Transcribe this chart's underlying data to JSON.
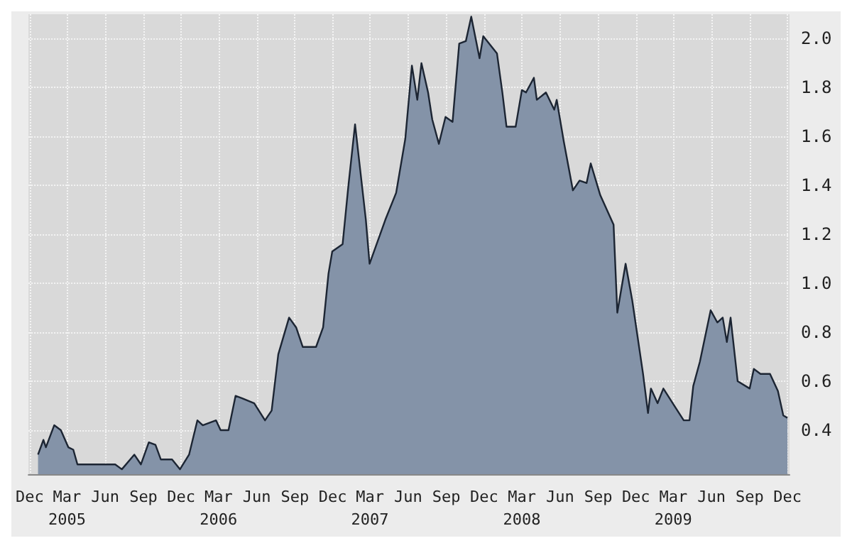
{
  "chart_data": {
    "type": "area",
    "x": [
      "2004-12-21",
      "2005-01-03",
      "2005-01-09",
      "2005-01-29",
      "2005-02-14",
      "2005-03-04",
      "2005-03-16",
      "2005-03-26",
      "2005-06-25",
      "2005-07-11",
      "2005-08-10",
      "2005-08-26",
      "2005-09-14",
      "2005-09-30",
      "2005-10-13",
      "2005-11-09",
      "2005-11-28",
      "2005-12-20",
      "2006-01-09",
      "2006-01-22",
      "2006-02-07",
      "2006-02-23",
      "2006-03-06",
      "2006-03-25",
      "2006-04-11",
      "2006-04-27",
      "2006-05-26",
      "2006-06-21",
      "2006-07-07",
      "2006-07-23",
      "2006-08-18",
      "2006-09-04",
      "2006-09-20",
      "2006-10-22",
      "2006-11-08",
      "2006-11-21",
      "2006-11-30",
      "2006-12-25",
      "2007-01-08",
      "2007-01-24",
      "2007-02-19",
      "2007-02-28",
      "2007-04-07",
      "2007-05-03",
      "2007-05-25",
      "2007-06-10",
      "2007-06-23",
      "2007-07-03",
      "2007-07-19",
      "2007-07-29",
      "2007-08-14",
      "2007-08-30",
      "2007-09-16",
      "2007-10-02",
      "2007-10-18",
      "2007-10-31",
      "2007-11-20",
      "2007-11-29",
      "2008-01-01",
      "2008-01-14",
      "2008-01-24",
      "2008-02-15",
      "2008-03-01",
      "2008-03-11",
      "2008-03-30",
      "2008-04-06",
      "2008-04-28",
      "2008-05-18",
      "2008-05-24",
      "2008-06-10",
      "2008-07-02",
      "2008-07-18",
      "2008-08-04",
      "2008-08-14",
      "2008-09-06",
      "2008-10-08",
      "2008-10-17",
      "2008-11-06",
      "2008-11-22",
      "2008-12-18",
      "2008-12-30",
      "2009-01-06",
      "2009-01-22",
      "2009-02-05",
      "2009-03-07",
      "2009-03-26",
      "2009-04-09",
      "2009-04-18",
      "2009-05-04",
      "2009-05-30",
      "2009-06-15",
      "2009-06-28",
      "2009-07-08",
      "2009-07-17",
      "2009-08-03",
      "2009-09-01",
      "2009-09-11",
      "2009-09-27",
      "2009-10-20",
      "2009-11-08",
      "2009-11-21",
      "2009-12-01"
    ],
    "series": [
      {
        "color": "#8493a8",
        "values": [
          0.3,
          0.36,
          0.33,
          0.42,
          0.4,
          0.33,
          0.32,
          0.26,
          0.26,
          0.24,
          0.3,
          0.26,
          0.35,
          0.34,
          0.28,
          0.28,
          0.24,
          0.3,
          0.44,
          0.42,
          0.43,
          0.44,
          0.4,
          0.4,
          0.54,
          0.53,
          0.51,
          0.44,
          0.48,
          0.71,
          0.86,
          0.82,
          0.74,
          0.74,
          0.82,
          1.04,
          1.13,
          1.16,
          1.4,
          1.65,
          1.26,
          1.08,
          1.26,
          1.37,
          1.59,
          1.89,
          1.75,
          1.9,
          1.78,
          1.67,
          1.57,
          1.68,
          1.66,
          1.98,
          1.99,
          2.09,
          1.92,
          2.01,
          1.94,
          1.78,
          1.64,
          1.64,
          1.79,
          1.78,
          1.84,
          1.75,
          1.78,
          1.71,
          1.75,
          1.58,
          1.38,
          1.42,
          1.41,
          1.49,
          1.36,
          1.24,
          0.88,
          1.08,
          0.93,
          0.63,
          0.47,
          0.57,
          0.51,
          0.57,
          0.49,
          0.44,
          0.44,
          0.58,
          0.68,
          0.89,
          0.84,
          0.86,
          0.76,
          0.86,
          0.6,
          0.57,
          0.65,
          0.63,
          0.63,
          0.56,
          0.46,
          0.45
        ]
      }
    ],
    "xlim": [
      "2004-11-28",
      "2009-12-06"
    ],
    "xticks": [
      {
        "value": "2004-12-01",
        "label": "Dec"
      },
      {
        "value": "2005-03-01",
        "label": "Mar\n2005"
      },
      {
        "value": "2005-06-01",
        "label": "Jun"
      },
      {
        "value": "2005-09-01",
        "label": "Sep"
      },
      {
        "value": "2005-12-01",
        "label": "Dec"
      },
      {
        "value": "2006-03-01",
        "label": "Mar\n2006"
      },
      {
        "value": "2006-06-01",
        "label": "Jun"
      },
      {
        "value": "2006-09-01",
        "label": "Sep"
      },
      {
        "value": "2006-12-01",
        "label": "Dec"
      },
      {
        "value": "2007-03-01",
        "label": "Mar\n2007"
      },
      {
        "value": "2007-06-01",
        "label": "Jun"
      },
      {
        "value": "2007-09-01",
        "label": "Sep"
      },
      {
        "value": "2007-12-01",
        "label": "Dec"
      },
      {
        "value": "2008-03-01",
        "label": "Mar\n2008"
      },
      {
        "value": "2008-06-01",
        "label": "Jun"
      },
      {
        "value": "2008-09-01",
        "label": "Sep"
      },
      {
        "value": "2008-12-01",
        "label": "Dec"
      },
      {
        "value": "2009-03-01",
        "label": "Mar\n2009"
      },
      {
        "value": "2009-06-01",
        "label": "Jun"
      },
      {
        "value": "2009-09-01",
        "label": "Sep"
      },
      {
        "value": "2009-12-01",
        "label": "Dec"
      }
    ],
    "ylim": [
      0.22,
      2.1
    ],
    "yticks": [
      0.4,
      0.6,
      0.8,
      {
        "value": 1,
        "label": "1.0"
      },
      1.2,
      1.4,
      1.6,
      1.8,
      {
        "value": 2,
        "label": "2.0"
      }
    ],
    "grid": true
  }
}
